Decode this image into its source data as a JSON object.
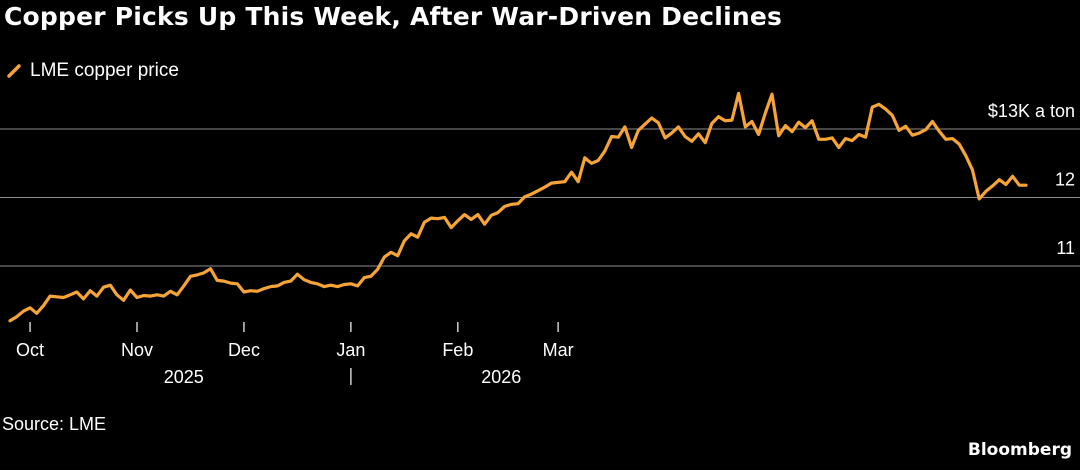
{
  "header": {
    "title": "Copper Picks Up This Week, After War-Driven Declines"
  },
  "legend": {
    "label": "LME copper price"
  },
  "footer": {
    "source": "Source: LME",
    "brand": "Bloomberg"
  },
  "colors": {
    "background": "#000000",
    "series": "#f7a437",
    "gridline": "#8c8c8c",
    "text": "#ffffff"
  },
  "chart_data": {
    "type": "line",
    "title": "Copper Picks Up This Week, After War-Driven Declines",
    "xlabel": "",
    "ylabel": "$ a ton",
    "ylim": [
      10000,
      13500
    ],
    "xlim": [
      0,
      154
    ],
    "y_ticks": [
      {
        "value": 13000,
        "label": "$13K a ton"
      },
      {
        "value": 12000,
        "label": "12"
      },
      {
        "value": 11000,
        "label": "11"
      }
    ],
    "x_ticks": [
      {
        "x": 3,
        "label": "Oct"
      },
      {
        "x": 19,
        "label": "Nov"
      },
      {
        "x": 35,
        "label": "Dec"
      },
      {
        "x": 51,
        "label": "Jan"
      },
      {
        "x": 67,
        "label": "Feb"
      },
      {
        "x": 82,
        "label": "Mar"
      }
    ],
    "year_labels": [
      {
        "x": 26,
        "label": "2025"
      },
      {
        "x": 73.5,
        "label": "2026"
      }
    ],
    "year_divider_x": 51,
    "series": [
      {
        "name": "LME copper price",
        "values": [
          10200,
          10260,
          10340,
          10390,
          10310,
          10420,
          10560,
          10550,
          10540,
          10580,
          10620,
          10520,
          10640,
          10560,
          10690,
          10720,
          10580,
          10500,
          10650,
          10540,
          10570,
          10560,
          10580,
          10560,
          10630,
          10580,
          10710,
          10850,
          10870,
          10900,
          10960,
          10790,
          10780,
          10750,
          10740,
          10620,
          10640,
          10630,
          10670,
          10700,
          10710,
          10760,
          10780,
          10880,
          10800,
          10760,
          10740,
          10700,
          10720,
          10700,
          10730,
          10740,
          10710,
          10830,
          10850,
          10950,
          11130,
          11200,
          11150,
          11370,
          11470,
          11420,
          11640,
          11700,
          11690,
          11710,
          11560,
          11660,
          11750,
          11680,
          11750,
          11610,
          11740,
          11780,
          11870,
          11900,
          11910,
          12010,
          12050,
          12100,
          12150,
          12210,
          12220,
          12230,
          12370,
          12230,
          12580,
          12500,
          12540,
          12680,
          12890,
          12880,
          13030,
          12730,
          12980,
          13070,
          13160,
          13090,
          12870,
          12940,
          13030,
          12890,
          12820,
          12930,
          12800,
          13080,
          13180,
          13120,
          13130,
          13520,
          13030,
          13110,
          12920,
          13230,
          13510,
          12900,
          13050,
          12960,
          13100,
          13020,
          13120,
          12850,
          12850,
          12870,
          12730,
          12860,
          12830,
          12920,
          12880,
          13320,
          13360,
          13290,
          13200,
          12980,
          13040,
          12910,
          12940,
          12990,
          13110,
          12970,
          12850,
          12860,
          12780,
          12610,
          12400,
          11980,
          12090,
          12170,
          12260,
          12190,
          12310,
          12180,
          12180
        ]
      }
    ]
  }
}
